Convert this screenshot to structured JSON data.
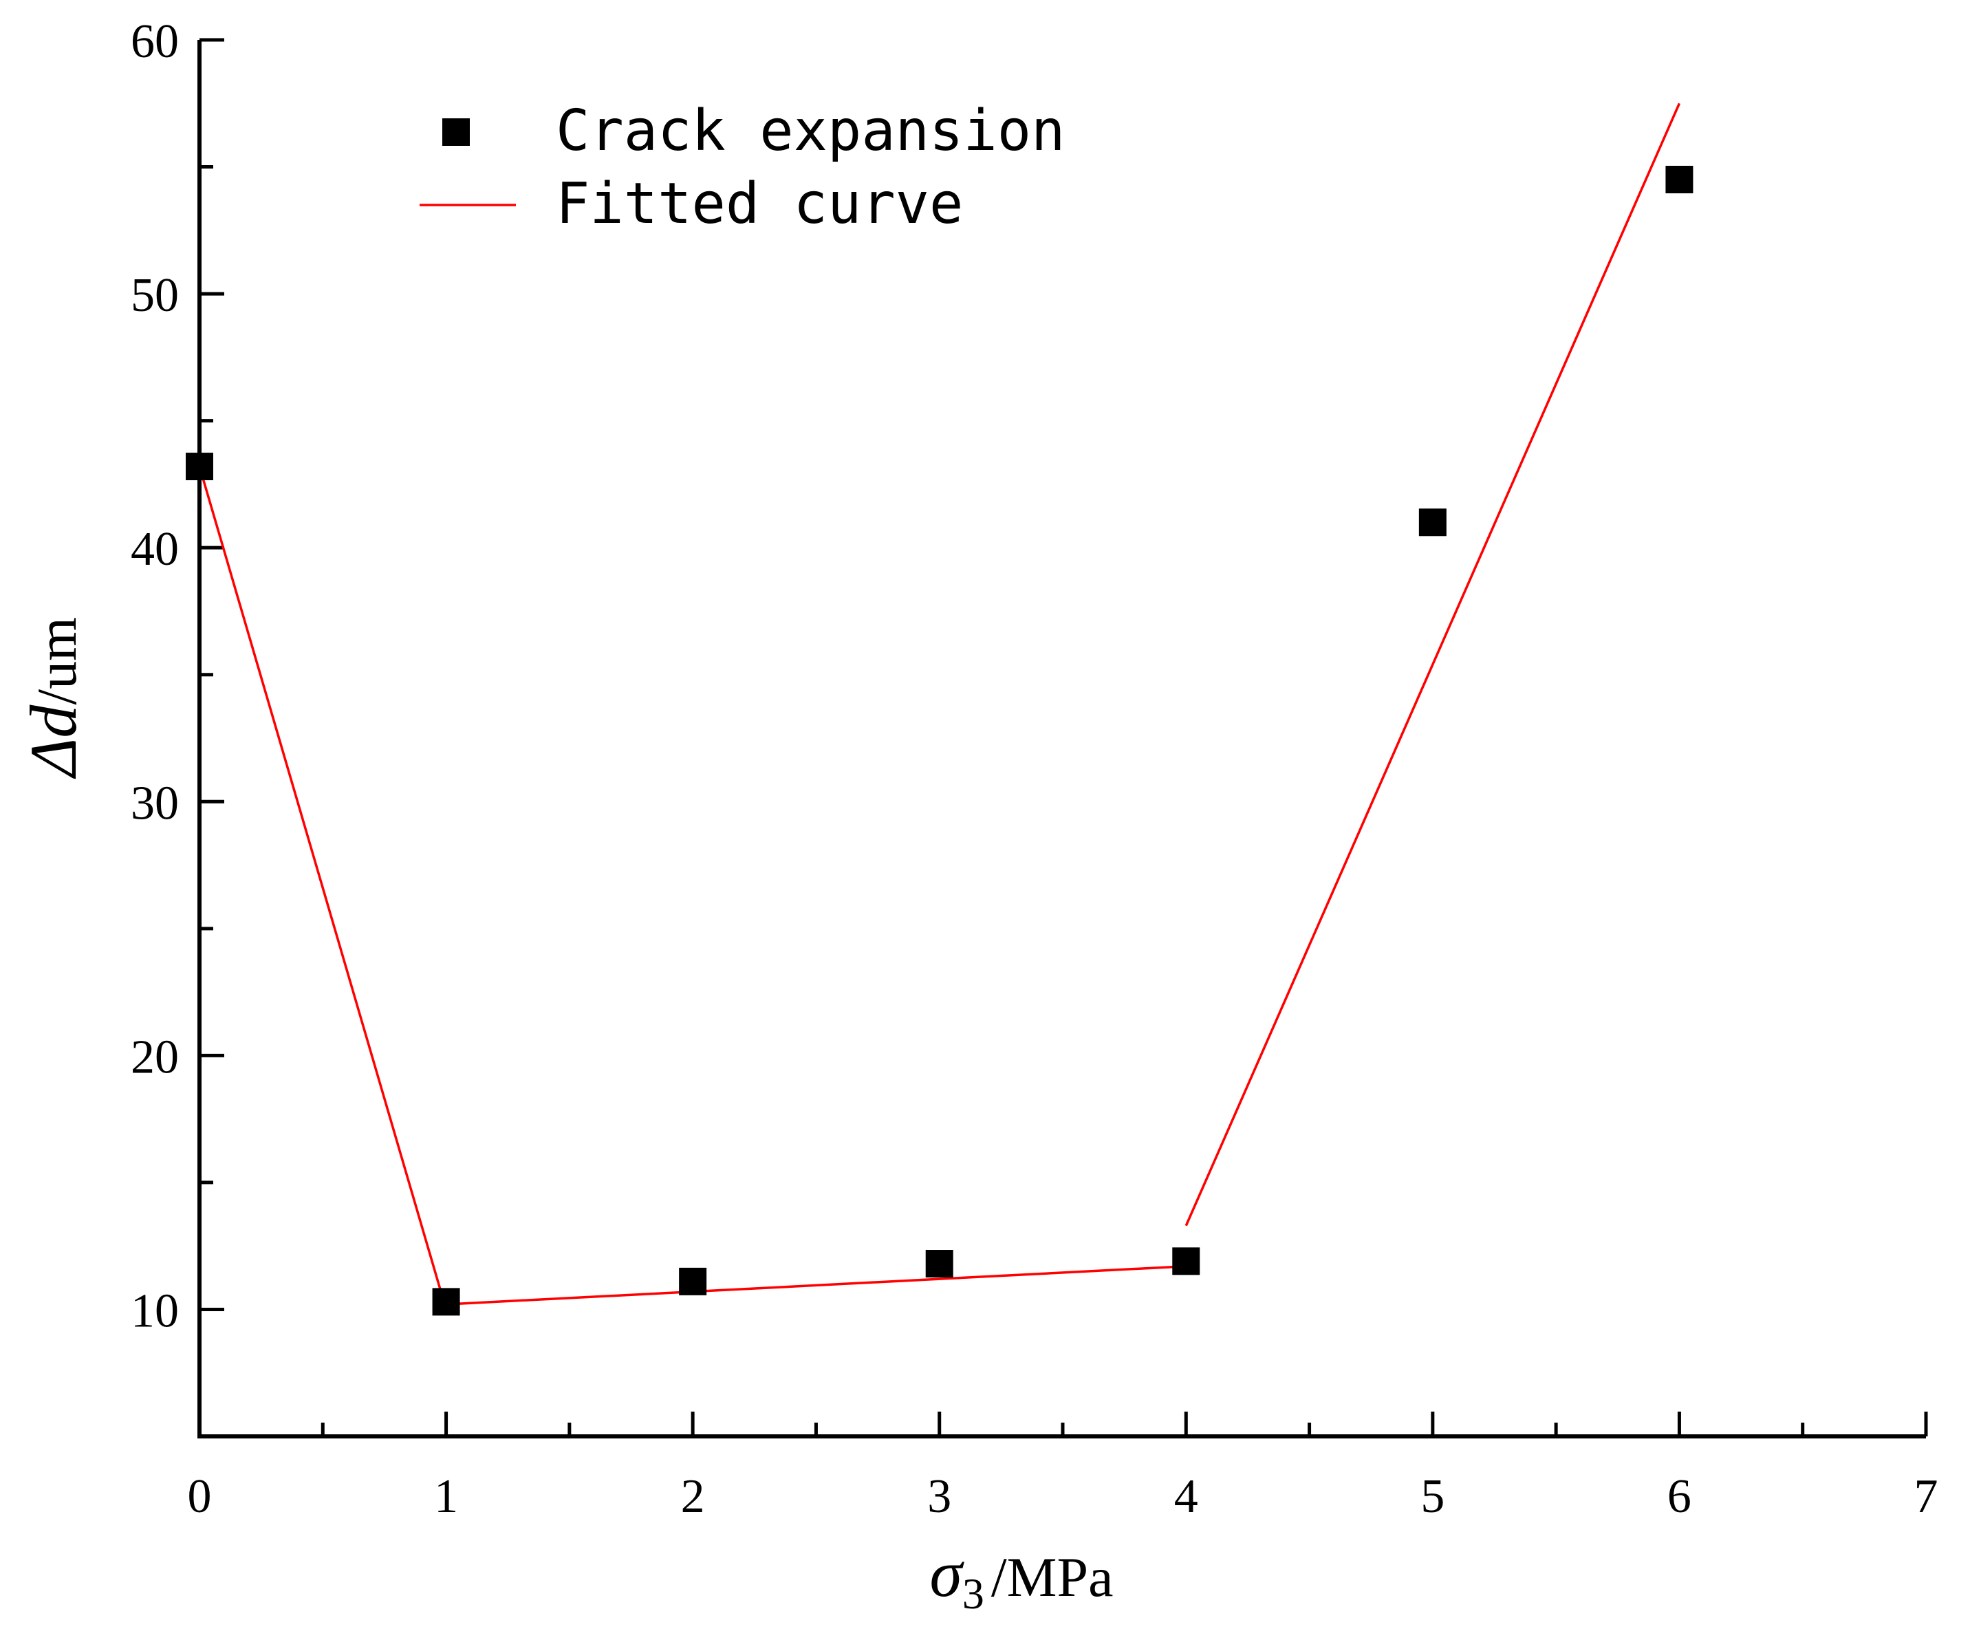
{
  "chart_data": {
    "type": "scatter",
    "xlim": [
      0,
      7
    ],
    "ylim": [
      5,
      60
    ],
    "x_ticks": [
      0,
      1,
      2,
      3,
      4,
      5,
      6,
      7
    ],
    "y_ticks": [
      10,
      20,
      30,
      40,
      50,
      60
    ],
    "x_minor_step": 0.5,
    "y_minor_step": 5,
    "xlabel": {
      "symbol": "σ",
      "subscript": "3",
      "unit": "/MPa"
    },
    "ylabel": {
      "symbol": "Δd",
      "unit": "/um"
    },
    "grid": false,
    "legend_position": "top-left",
    "series": [
      {
        "name": "Crack expansion",
        "kind": "scatter",
        "marker": "square",
        "color": "#000000",
        "x": [
          0,
          1,
          2,
          3,
          4,
          5,
          6
        ],
        "y": [
          43.2,
          10.3,
          11.1,
          11.8,
          11.9,
          41.0,
          54.5
        ]
      },
      {
        "name": "Fitted curve",
        "kind": "line",
        "color": "#ff0000",
        "segments": [
          {
            "x": [
              0,
              1
            ],
            "y": [
              43.2,
              10.0
            ]
          },
          {
            "x": [
              1,
              4
            ],
            "y": [
              10.2,
              11.7
            ]
          },
          {
            "x": [
              4,
              6
            ],
            "y": [
              13.3,
              57.5
            ]
          }
        ]
      }
    ]
  }
}
